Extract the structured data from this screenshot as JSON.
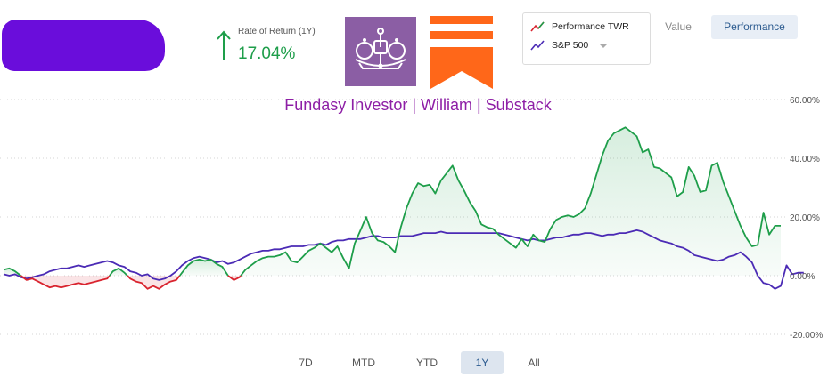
{
  "header": {
    "rate_of_return_label": "Rate of Return (1Y)",
    "rate_of_return_value": "17.04%"
  },
  "legend": {
    "items": [
      {
        "label": "Performance TWR",
        "color": "#1e9e4a"
      },
      {
        "label": "S&P 500",
        "color": "#4b2bb5"
      }
    ]
  },
  "view_toggle": {
    "value_label": "Value",
    "performance_label": "Performance",
    "selected": "Performance"
  },
  "timeframes": {
    "items": [
      "7D",
      "MTD",
      "YTD",
      "1Y",
      "All"
    ],
    "selected": "1Y"
  },
  "colors": {
    "portfolio_up": "#1e9e4a",
    "portfolio_down": "#d9232e",
    "benchmark": "#4b2bb5",
    "title": "#8e1fa6",
    "redaction": "#6a0ddb"
  },
  "icons": [
    "up-arrow-icon",
    "crown-logo-icon",
    "substack-logo-icon",
    "chevron-down-icon"
  ],
  "chart_data": {
    "type": "line",
    "title": "Fundasy Investor | William | Substack",
    "y_unit": "%",
    "ylim": [
      -20,
      60
    ],
    "yticks": [
      -20,
      0,
      20,
      40,
      60
    ],
    "ytick_labels": [
      "-20.00%",
      "0.00%",
      "20.00%",
      "40.00%",
      "60.00%"
    ],
    "grid": true,
    "legend_position": "top-right",
    "series": [
      {
        "name": "Performance TWR",
        "values": [
          2,
          2.5,
          1.5,
          0,
          -1.5,
          -1,
          -2,
          -3,
          -4,
          -3.5,
          -4,
          -3.5,
          -3,
          -2.5,
          -3,
          -2.5,
          -2,
          -1.5,
          -1,
          1.5,
          2.5,
          1,
          -1,
          -2,
          -2.5,
          -4.5,
          -3.5,
          -4.5,
          -3,
          -2,
          -1.5,
          1,
          3.5,
          5,
          5.5,
          5,
          5.5,
          4,
          3,
          0,
          -1.5,
          -0.5,
          2,
          3.5,
          5,
          6,
          6.5,
          6.5,
          7,
          8,
          5,
          4.5,
          6.5,
          8.5,
          9.5,
          11,
          9.5,
          8,
          10,
          6,
          2.5,
          11,
          15.5,
          20,
          14.5,
          12,
          11.5,
          10,
          8,
          16.5,
          23,
          28,
          31.5,
          30.5,
          31,
          28,
          32.5,
          35,
          37.5,
          32.5,
          29,
          25,
          22,
          17.5,
          16.5,
          16,
          14,
          12.5,
          11,
          9.5,
          12.5,
          10,
          14,
          12,
          11.5,
          16,
          19,
          20,
          20.5,
          20,
          21,
          23,
          28,
          34.5,
          41,
          46,
          48.5,
          49.5,
          50.5,
          49,
          47.5,
          42,
          43,
          37,
          36.5,
          35,
          33.5,
          27,
          28.5,
          37,
          34,
          28.5,
          29,
          37.5,
          38.5,
          32,
          27,
          22,
          17,
          13,
          10,
          10.5,
          21.5,
          14,
          17,
          17
        ],
        "segment_colors": {
          "below_zero": "#d9232e",
          "above_zero": "#1e9e4a"
        }
      },
      {
        "name": "S&P 500",
        "values": [
          0.5,
          0,
          0.5,
          -0.5,
          -1,
          -0.5,
          0,
          0.5,
          1.5,
          2,
          2.5,
          2.5,
          3,
          3.5,
          3,
          3.5,
          4,
          4.5,
          5,
          4.5,
          3.5,
          3,
          1.5,
          1,
          0,
          0.5,
          -1,
          -1.5,
          -1,
          0,
          1.5,
          3.5,
          5,
          6,
          6.5,
          6,
          5.5,
          4.5,
          5,
          4,
          4.5,
          5.5,
          6.5,
          7.5,
          8,
          8.5,
          8.5,
          9,
          9,
          9.5,
          10,
          10,
          10,
          10.5,
          10.5,
          11,
          10.5,
          11.5,
          12,
          12,
          12.5,
          12.5,
          12.5,
          13,
          13.5,
          13.5,
          13,
          13,
          13,
          13.5,
          13.5,
          13.5,
          14,
          14.5,
          14.5,
          14.5,
          15,
          14.5,
          14.5,
          14.5,
          14.5,
          14.5,
          14.5,
          14.5,
          14.5,
          14.5,
          14.5,
          14,
          13.5,
          13,
          12.5,
          12,
          12.5,
          12,
          12,
          12.5,
          13,
          13,
          13.5,
          14,
          14,
          14.5,
          14.5,
          14,
          13.5,
          14,
          14,
          14.5,
          14.5,
          15,
          15.5,
          15,
          14,
          13,
          12,
          11.5,
          11,
          10,
          9.5,
          8.5,
          7,
          6.5,
          6,
          5.5,
          5,
          5.5,
          6.5,
          7,
          8,
          6.5,
          4.5,
          0,
          -2.5,
          -3,
          -4.5,
          -3.5,
          3.5,
          0.5,
          1,
          1
        ]
      }
    ]
  }
}
